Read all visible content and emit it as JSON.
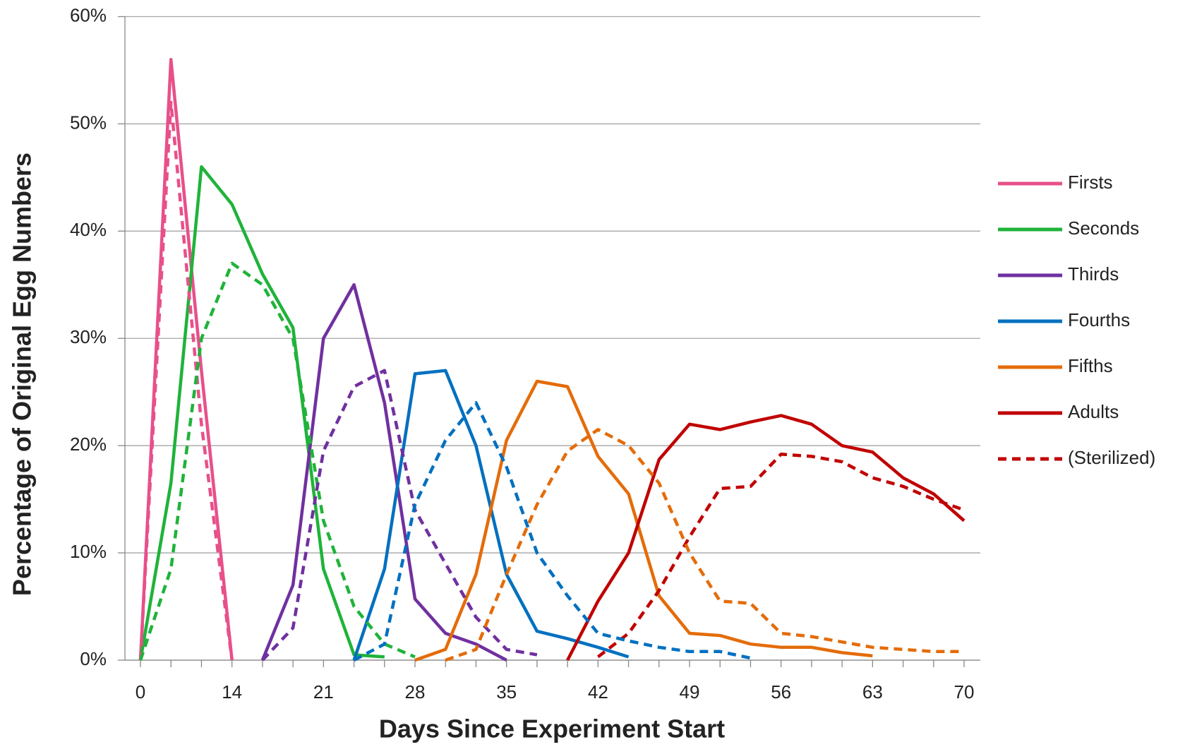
{
  "chart_data": {
    "type": "line",
    "ylabel": "Percentage of Original Egg Numbers",
    "xlabel": "Days Since Experiment Start",
    "categories": [
      0,
      null,
      null,
      14,
      null,
      null,
      21,
      null,
      null,
      28,
      null,
      null,
      35,
      null,
      null,
      42,
      null,
      null,
      49,
      null,
      null,
      56,
      null,
      null,
      63,
      null,
      null,
      70
    ],
    "ylim": [
      0,
      60
    ],
    "yticks": [
      {
        "value": 0,
        "label": "0%"
      },
      {
        "value": 10,
        "label": "10%"
      },
      {
        "value": 20,
        "label": "20%"
      },
      {
        "value": 30,
        "label": "30%"
      },
      {
        "value": 40,
        "label": "40%"
      },
      {
        "value": 50,
        "label": "50%"
      },
      {
        "value": 60,
        "label": "60%"
      }
    ],
    "grid": true,
    "legend": "right",
    "series": [
      {
        "name": "Firsts",
        "color": "#e8508a",
        "dashed": false,
        "values": [
          0,
          56,
          27,
          0,
          null,
          null,
          null,
          null,
          null,
          null,
          null,
          null,
          null,
          null,
          null,
          null,
          null,
          null,
          null,
          null,
          null,
          null,
          null,
          null,
          null,
          null,
          null,
          null
        ]
      },
      {
        "name": "Seconds",
        "color": "#1fb33a",
        "dashed": false,
        "values": [
          0,
          16.5,
          46,
          42.5,
          36,
          31,
          8.5,
          0.5,
          0.3,
          null,
          null,
          null,
          null,
          null,
          null,
          null,
          null,
          null,
          null,
          null,
          null,
          null,
          null,
          null,
          null,
          null,
          null,
          null
        ]
      },
      {
        "name": "Thirds",
        "color": "#7030a0",
        "dashed": false,
        "values": [
          null,
          null,
          null,
          null,
          0,
          7,
          30,
          35,
          24,
          5.7,
          2.5,
          1.5,
          0,
          null,
          null,
          null,
          null,
          null,
          null,
          null,
          null,
          null,
          null,
          null,
          null,
          null,
          null,
          null
        ]
      },
      {
        "name": "Fourths",
        "color": "#0070c0",
        "dashed": false,
        "values": [
          null,
          null,
          null,
          null,
          null,
          null,
          null,
          0,
          8.5,
          26.7,
          27,
          20,
          8,
          2.7,
          2,
          1.2,
          0.3,
          null,
          null,
          null,
          null,
          null,
          null,
          null,
          null,
          null,
          null,
          null
        ]
      },
      {
        "name": "Fifths",
        "color": "#e46c0a",
        "dashed": false,
        "values": [
          null,
          null,
          null,
          null,
          null,
          null,
          null,
          null,
          null,
          0,
          1,
          8,
          20.5,
          26,
          25.5,
          19,
          15.5,
          6,
          2.5,
          2.3,
          1.5,
          1.2,
          1.2,
          0.7,
          0.4,
          null,
          null,
          null
        ]
      },
      {
        "name": "Adults",
        "color": "#c00000",
        "dashed": false,
        "values": [
          null,
          null,
          null,
          null,
          null,
          null,
          null,
          null,
          null,
          null,
          null,
          null,
          null,
          null,
          0,
          5.5,
          10,
          18.7,
          22,
          21.5,
          22.2,
          22.8,
          22,
          20,
          19.4,
          17,
          15.5,
          13
        ]
      },
      {
        "name": "(Sterilized)",
        "color": "#c00000",
        "dashed": true,
        "values": [
          null,
          null,
          null,
          null,
          null,
          null,
          null,
          null,
          null,
          null,
          null,
          null,
          null,
          null,
          null,
          0.3,
          2.5,
          6.5,
          11.5,
          16,
          16.2,
          19.2,
          19,
          18.5,
          17,
          16.2,
          15,
          14
        ]
      },
      {
        "color": "#e8508a",
        "dashed": true,
        "values": [
          0,
          52,
          22,
          0,
          null,
          null,
          null,
          null,
          null,
          null,
          null,
          null,
          null,
          null,
          null,
          null,
          null,
          null,
          null,
          null,
          null,
          null,
          null,
          null,
          null,
          null,
          null,
          null
        ]
      },
      {
        "color": "#1fb33a",
        "dashed": true,
        "values": [
          0,
          8.5,
          30,
          37,
          35,
          30,
          13,
          5,
          1.5,
          0.3,
          null,
          null,
          null,
          null,
          null,
          null,
          null,
          null,
          null,
          null,
          null,
          null,
          null,
          null,
          null,
          null,
          null,
          null
        ]
      },
      {
        "color": "#7030a0",
        "dashed": true,
        "values": [
          null,
          null,
          null,
          null,
          0,
          3,
          19.5,
          25.5,
          27,
          14,
          9,
          4,
          1,
          0.5,
          null,
          null,
          null,
          null,
          null,
          null,
          null,
          null,
          null,
          null,
          null,
          null,
          null,
          null
        ]
      },
      {
        "color": "#0070c0",
        "dashed": true,
        "values": [
          null,
          null,
          null,
          null,
          null,
          null,
          null,
          0,
          1.5,
          14.5,
          20.5,
          24,
          18,
          10,
          6,
          2.5,
          1.8,
          1.2,
          0.8,
          0.8,
          0.2,
          null,
          null,
          null,
          null,
          null,
          null,
          null
        ]
      },
      {
        "color": "#e46c0a",
        "dashed": true,
        "values": [
          null,
          null,
          null,
          null,
          null,
          null,
          null,
          null,
          null,
          null,
          0,
          1,
          8,
          14.5,
          19.5,
          21.5,
          20,
          16.5,
          10,
          5.5,
          5.3,
          2.5,
          2.2,
          1.7,
          1.2,
          1,
          0.8,
          0.8
        ]
      }
    ]
  }
}
